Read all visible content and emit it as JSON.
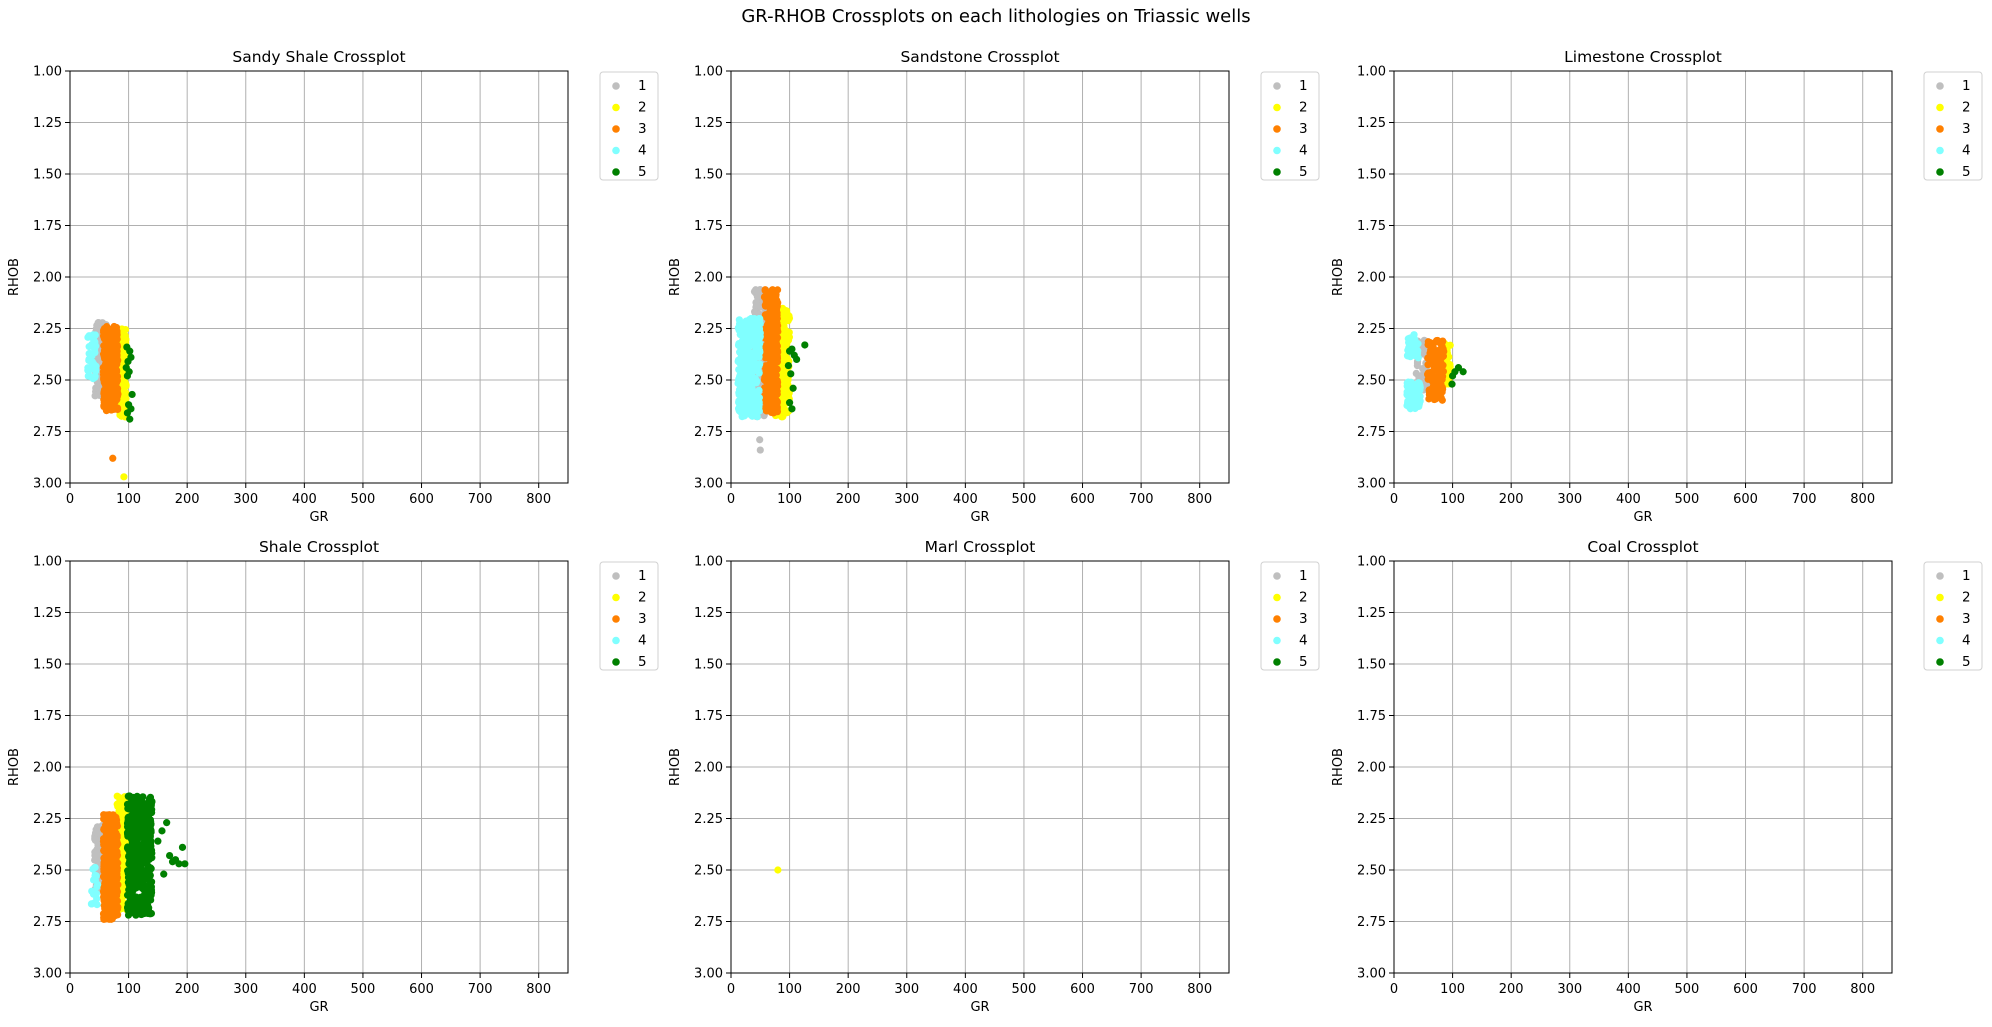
{
  "figure": {
    "suptitle": "GR-RHOB Crossplots on each lithologies on Triassic wells"
  },
  "legend_entries": [
    {
      "label": "1",
      "color": "#bfbfbf"
    },
    {
      "label": "2",
      "color": "#ffff00"
    },
    {
      "label": "3",
      "color": "#ff8000"
    },
    {
      "label": "4",
      "color": "#80ffff"
    },
    {
      "label": "5",
      "color": "#008000"
    }
  ],
  "chart_data": [
    {
      "type": "scatter",
      "title": "Sandy Shale Crossplot",
      "xlabel": "GR",
      "ylabel": "RHOB",
      "xlim": [
        0,
        850
      ],
      "ylim": [
        1.0,
        3.0
      ],
      "y_inverted": true,
      "xticks": [
        0,
        100,
        200,
        300,
        400,
        500,
        600,
        700,
        800
      ],
      "yticks": [
        "1.00",
        "1.25",
        "1.50",
        "1.75",
        "2.00",
        "2.25",
        "2.50",
        "2.75",
        "3.00"
      ],
      "grid": true,
      "legend_position": "outside upper right",
      "series": [
        {
          "name": "1",
          "color": "#bfbfbf",
          "clusters": [
            {
              "x": [
                42,
                62
              ],
              "y": [
                2.22,
                2.58
              ],
              "n": 160
            }
          ]
        },
        {
          "name": "2",
          "color": "#ffff00",
          "clusters": [
            {
              "x": [
                80,
                96
              ],
              "y": [
                2.25,
                2.68
              ],
              "n": 160
            }
          ],
          "points": [
            [
              92,
              2.97
            ]
          ]
        },
        {
          "name": "3",
          "color": "#ff8000",
          "clusters": [
            {
              "x": [
                57,
                82
              ],
              "y": [
                2.24,
                2.66
              ],
              "n": 260
            }
          ],
          "points": [
            [
              73,
              2.88
            ]
          ]
        },
        {
          "name": "4",
          "color": "#80ffff",
          "clusters": [
            {
              "x": [
                30,
                45
              ],
              "y": [
                2.28,
                2.5
              ],
              "n": 45
            }
          ]
        },
        {
          "name": "5",
          "color": "#008000",
          "points": [
            [
              97,
              2.34
            ],
            [
              102,
              2.36
            ],
            [
              104,
              2.39
            ],
            [
              99,
              2.41
            ],
            [
              101,
              2.46
            ],
            [
              98,
              2.48
            ],
            [
              106,
              2.57
            ],
            [
              100,
              2.62
            ],
            [
              104,
              2.64
            ],
            [
              98,
              2.66
            ],
            [
              102,
              2.69
            ],
            [
              96,
              2.44
            ]
          ]
        }
      ]
    },
    {
      "type": "scatter",
      "title": "Sandstone Crossplot",
      "xlabel": "GR",
      "ylabel": "RHOB",
      "xlim": [
        0,
        850
      ],
      "ylim": [
        1.0,
        3.0
      ],
      "y_inverted": true,
      "xticks": [
        0,
        100,
        200,
        300,
        400,
        500,
        600,
        700,
        800
      ],
      "yticks": [
        "1.00",
        "1.25",
        "1.50",
        "1.75",
        "2.00",
        "2.25",
        "2.50",
        "2.75",
        "3.00"
      ],
      "grid": true,
      "legend_position": "outside upper right",
      "series": [
        {
          "name": "1",
          "color": "#bfbfbf",
          "clusters": [
            {
              "x": [
                40,
                60
              ],
              "y": [
                2.06,
                2.68
              ],
              "n": 200
            }
          ],
          "points": [
            [
              49,
              2.79
            ],
            [
              50,
              2.84
            ]
          ]
        },
        {
          "name": "2",
          "color": "#ffff00",
          "clusters": [
            {
              "x": [
                75,
                100
              ],
              "y": [
                2.15,
                2.68
              ],
              "n": 220
            }
          ]
        },
        {
          "name": "3",
          "color": "#ff8000",
          "clusters": [
            {
              "x": [
                57,
                80
              ],
              "y": [
                2.06,
                2.66
              ],
              "n": 280
            }
          ]
        },
        {
          "name": "4",
          "color": "#80ffff",
          "clusters": [
            {
              "x": [
                12,
                50
              ],
              "y": [
                2.2,
                2.68
              ],
              "n": 320
            }
          ]
        },
        {
          "name": "5",
          "color": "#008000",
          "points": [
            [
              100,
              2.36
            ],
            [
              104,
              2.35
            ],
            [
              108,
              2.38
            ],
            [
              112,
              2.4
            ],
            [
              126,
              2.33
            ],
            [
              102,
              2.47
            ],
            [
              106,
              2.54
            ],
            [
              100,
              2.61
            ],
            [
              104,
              2.64
            ],
            [
              98,
              2.43
            ]
          ]
        }
      ]
    },
    {
      "type": "scatter",
      "title": "Limestone Crossplot",
      "xlabel": "GR",
      "ylabel": "RHOB",
      "xlim": [
        0,
        850
      ],
      "ylim": [
        1.0,
        3.0
      ],
      "y_inverted": true,
      "xticks": [
        0,
        100,
        200,
        300,
        400,
        500,
        600,
        700,
        800
      ],
      "yticks": [
        "1.00",
        "1.25",
        "1.50",
        "1.75",
        "2.00",
        "2.25",
        "2.50",
        "2.75",
        "3.00"
      ],
      "grid": true,
      "legend_position": "outside upper right",
      "series": [
        {
          "name": "1",
          "color": "#bfbfbf",
          "clusters": [
            {
              "x": [
                38,
                62
              ],
              "y": [
                2.3,
                2.55
              ],
              "n": 60
            }
          ]
        },
        {
          "name": "2",
          "color": "#ffff00",
          "clusters": [
            {
              "x": [
                82,
                96
              ],
              "y": [
                2.32,
                2.52
              ],
              "n": 60
            }
          ]
        },
        {
          "name": "3",
          "color": "#ff8000",
          "clusters": [
            {
              "x": [
                57,
                85
              ],
              "y": [
                2.3,
                2.6
              ],
              "n": 100
            }
          ]
        },
        {
          "name": "4",
          "color": "#80ffff",
          "clusters": [
            {
              "x": [
                22,
                42
              ],
              "y": [
                2.28,
                2.4
              ],
              "n": 30
            },
            {
              "x": [
                22,
                45
              ],
              "y": [
                2.51,
                2.64
              ],
              "n": 80
            }
          ]
        },
        {
          "name": "5",
          "color": "#008000",
          "points": [
            [
              100,
              2.48
            ],
            [
              104,
              2.46
            ],
            [
              110,
              2.44
            ],
            [
              118,
              2.46
            ],
            [
              99,
              2.52
            ]
          ]
        }
      ]
    },
    {
      "type": "scatter",
      "title": "Shale Crossplot",
      "xlabel": "GR",
      "ylabel": "RHOB",
      "xlim": [
        0,
        850
      ],
      "ylim": [
        1.0,
        3.0
      ],
      "y_inverted": true,
      "xticks": [
        0,
        100,
        200,
        300,
        400,
        500,
        600,
        700,
        800
      ],
      "yticks": [
        "1.00",
        "1.25",
        "1.50",
        "1.75",
        "2.00",
        "2.25",
        "2.50",
        "2.75",
        "3.00"
      ],
      "grid": true,
      "legend_position": "outside upper right",
      "series": [
        {
          "name": "1",
          "color": "#bfbfbf",
          "clusters": [
            {
              "x": [
                42,
                62
              ],
              "y": [
                2.28,
                2.6
              ],
              "n": 120
            }
          ]
        },
        {
          "name": "2",
          "color": "#ffff00",
          "clusters": [
            {
              "x": [
                80,
                100
              ],
              "y": [
                2.14,
                2.7
              ],
              "n": 200
            }
          ]
        },
        {
          "name": "3",
          "color": "#ff8000",
          "clusters": [
            {
              "x": [
                57,
                82
              ],
              "y": [
                2.23,
                2.74
              ],
              "n": 320
            }
          ]
        },
        {
          "name": "4",
          "color": "#80ffff",
          "clusters": [
            {
              "x": [
                35,
                48
              ],
              "y": [
                2.48,
                2.68
              ],
              "n": 18
            }
          ]
        },
        {
          "name": "5",
          "color": "#008000",
          "clusters": [
            {
              "x": [
                98,
                140
              ],
              "y": [
                2.14,
                2.72
              ],
              "n": 420
            }
          ],
          "points": [
            [
              150,
              2.36
            ],
            [
              157,
              2.31
            ],
            [
              165,
              2.27
            ],
            [
              170,
              2.43
            ],
            [
              180,
              2.45
            ],
            [
              186,
              2.47
            ],
            [
              192,
              2.39
            ],
            [
              196,
              2.47
            ],
            [
              160,
              2.52
            ],
            [
              175,
              2.46
            ]
          ]
        }
      ]
    },
    {
      "type": "scatter",
      "title": "Marl Crossplot",
      "xlabel": "GR",
      "ylabel": "RHOB",
      "xlim": [
        0,
        850
      ],
      "ylim": [
        1.0,
        3.0
      ],
      "y_inverted": true,
      "xticks": [
        0,
        100,
        200,
        300,
        400,
        500,
        600,
        700,
        800
      ],
      "yticks": [
        "1.00",
        "1.25",
        "1.50",
        "1.75",
        "2.00",
        "2.25",
        "2.50",
        "2.75",
        "3.00"
      ],
      "grid": true,
      "legend_position": "outside upper right",
      "series": [
        {
          "name": "1",
          "color": "#bfbfbf",
          "points": []
        },
        {
          "name": "2",
          "color": "#ffff00",
          "points": [
            [
              80,
              2.5
            ]
          ]
        },
        {
          "name": "3",
          "color": "#ff8000",
          "points": []
        },
        {
          "name": "4",
          "color": "#80ffff",
          "points": []
        },
        {
          "name": "5",
          "color": "#008000",
          "points": []
        }
      ]
    },
    {
      "type": "scatter",
      "title": "Coal Crossplot",
      "xlabel": "GR",
      "ylabel": "RHOB",
      "xlim": [
        0,
        850
      ],
      "ylim": [
        1.0,
        3.0
      ],
      "y_inverted": true,
      "xticks": [
        0,
        100,
        200,
        300,
        400,
        500,
        600,
        700,
        800
      ],
      "yticks": [
        "1.00",
        "1.25",
        "1.50",
        "1.75",
        "2.00",
        "2.25",
        "2.50",
        "2.75",
        "3.00"
      ],
      "grid": true,
      "legend_position": "outside upper right",
      "series": [
        {
          "name": "1",
          "color": "#bfbfbf",
          "points": []
        },
        {
          "name": "2",
          "color": "#ffff00",
          "points": []
        },
        {
          "name": "3",
          "color": "#ff8000",
          "points": []
        },
        {
          "name": "4",
          "color": "#80ffff",
          "points": []
        },
        {
          "name": "5",
          "color": "#008000",
          "points": []
        }
      ]
    }
  ]
}
